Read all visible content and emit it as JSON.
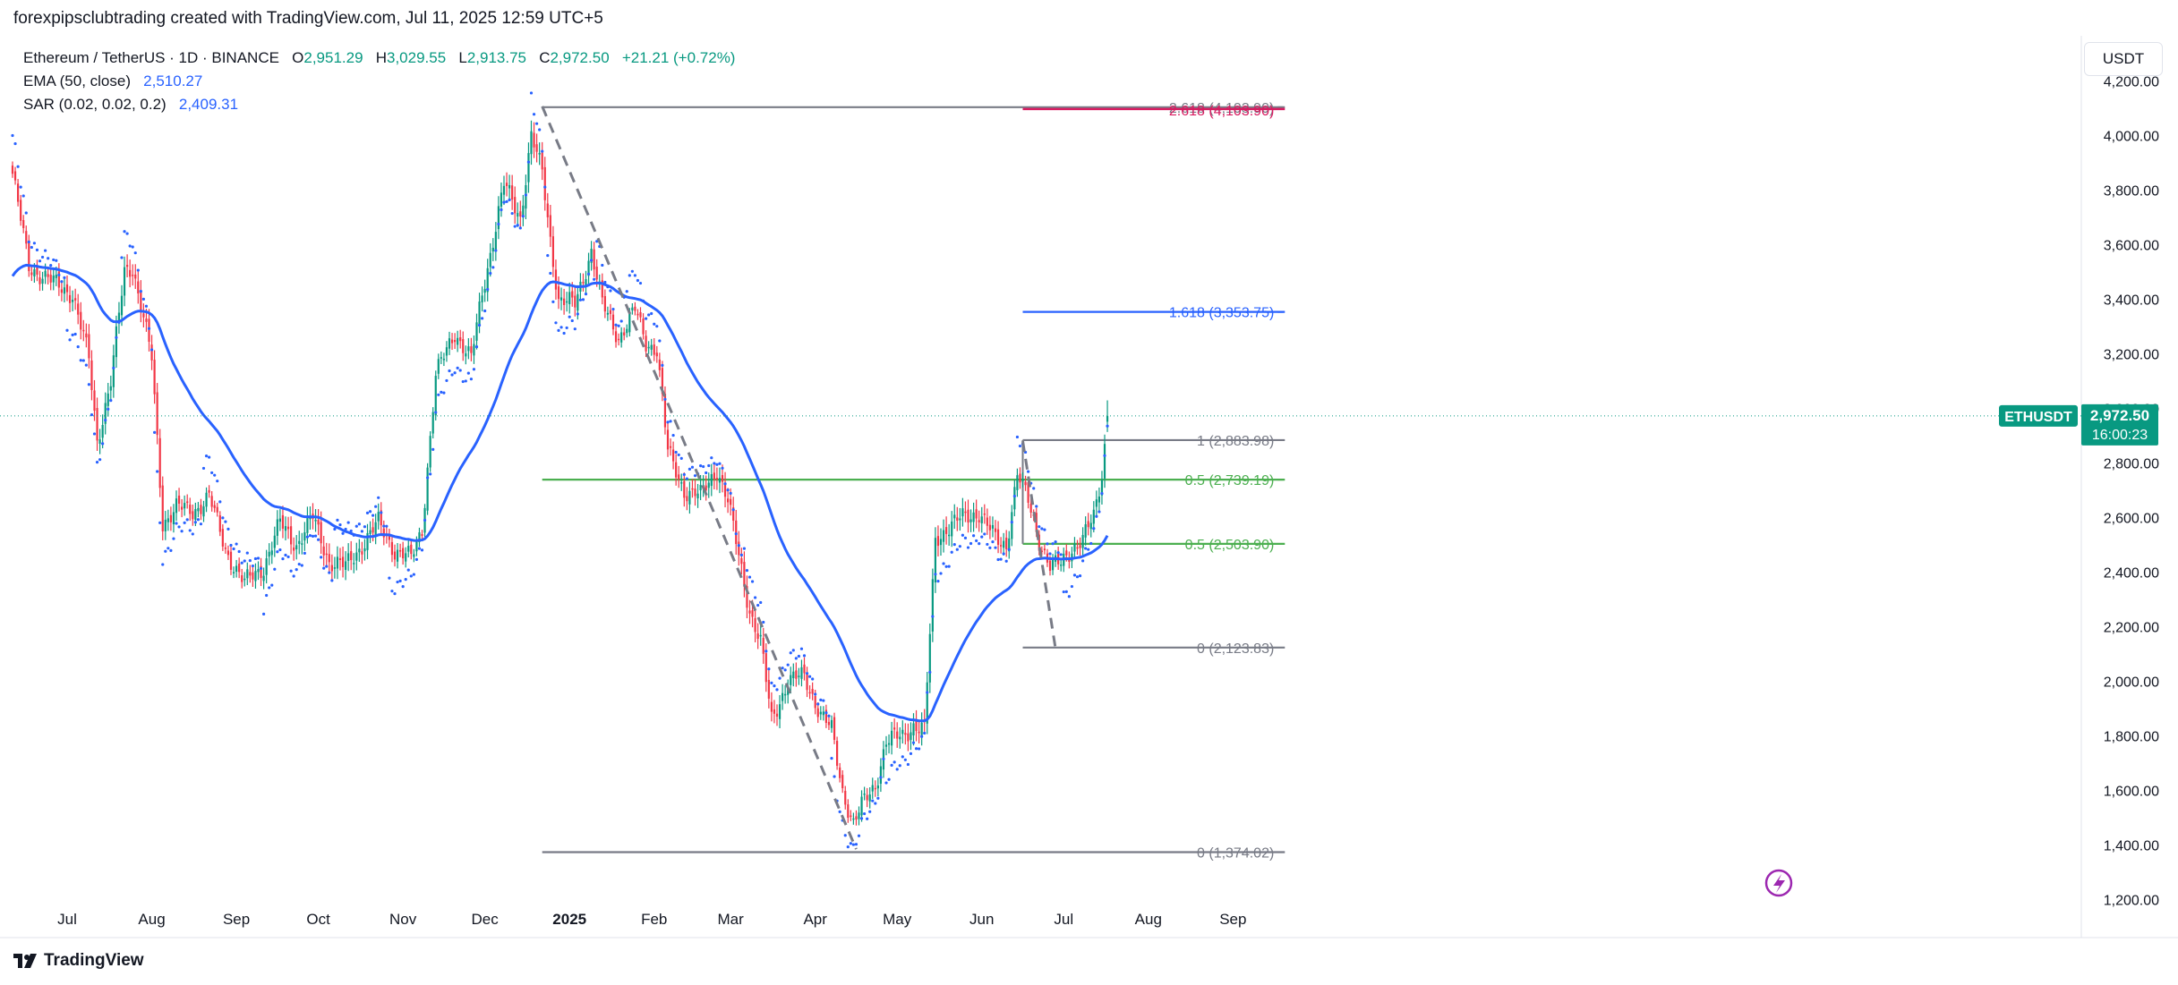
{
  "header": {
    "caption": "forexpipsclubtrading created with TradingView.com, Jul 11, 2025 12:59 UTC+5"
  },
  "legend": {
    "symbol": "Ethereum / TetherUS · 1D · BINANCE",
    "o_label": "O",
    "o_value": "2,951.29",
    "h_label": "H",
    "h_value": "3,029.55",
    "l_label": "L",
    "l_value": "2,913.75",
    "c_label": "C",
    "c_value": "2,972.50",
    "change": "+21.21 (+0.72%)",
    "ema_label": "EMA (50, close)",
    "ema_value": "2,510.27",
    "sar_label": "SAR (0.02, 0.02, 0.2)",
    "sar_value": "2,409.31"
  },
  "currency": "USDT",
  "footer": {
    "brand": "TradingView"
  },
  "colors": {
    "up": "#089981",
    "down": "#f23645",
    "ema": "#2962ff",
    "fib_green": "#4caf50",
    "fib_gray": "#787b86",
    "fib_blue": "#2962ff",
    "fib_red": "#d81b60"
  },
  "chart_data": {
    "type": "candlestick",
    "symbol": "ETHUSDT",
    "last_price": "2,972.50",
    "countdown": "16:00:23",
    "y_axis": {
      "min": 1120,
      "max": 4300,
      "ticks": [
        "4,200.00",
        "4,000.00",
        "3,800.00",
        "3,600.00",
        "3,400.00",
        "3,200.00",
        "3,000.00",
        "2,800.00",
        "2,600.00",
        "2,400.00",
        "2,200.00",
        "2,000.00",
        "1,800.00",
        "1,600.00",
        "1,400.00",
        "1,200.00"
      ],
      "tick_values": [
        4200,
        4000,
        3800,
        3600,
        3400,
        3200,
        3000,
        2800,
        2600,
        2400,
        2200,
        2000,
        1800,
        1600,
        1400,
        1200
      ]
    },
    "x_axis": {
      "labels": [
        "Jul",
        "Aug",
        "Sep",
        "Oct",
        "Nov",
        "Dec",
        "2025",
        "Feb",
        "Mar",
        "Apr",
        "May",
        "Jun",
        "Jul",
        "Aug",
        "Sep"
      ],
      "label_days": [
        20,
        51,
        82,
        112,
        143,
        173,
        204,
        235,
        263,
        294,
        324,
        355,
        385,
        416,
        447
      ],
      "total_days": 460
    },
    "fib_upper": {
      "start_day": 194,
      "end_day": 466,
      "levels": [
        {
          "label": "2.618 (4,103.90)",
          "value": 4103.9,
          "color": "#787b86",
          "start_day": 194
        },
        {
          "label": "1.618 (3,353.75)",
          "value": 3353.75,
          "color": "#2962ff",
          "start_day": 370
        },
        {
          "label": "0.5 (2,739.19)",
          "value": 2739.19,
          "color": "#4caf50",
          "start_day": 194
        },
        {
          "label": "0 (1,374.02)",
          "value": 1374.02,
          "color": "#787b86",
          "start_day": 194
        }
      ],
      "trend_from": {
        "day": 194,
        "value": 4107
      },
      "trend_to": {
        "day": 309,
        "value": 1385
      }
    },
    "fib_red_label": "2.618 (4,103.90)",
    "fib_red_value": 4103.9,
    "fib_lower": {
      "start_day": 370,
      "end_day": 466,
      "levels": [
        {
          "label": "1 (2,883.98)",
          "value": 2883.98,
          "color": "#787b86"
        },
        {
          "label": "0.5 (2,503.90)",
          "value": 2503.9,
          "color": "#4caf50"
        },
        {
          "label": "0 (2,123.83)",
          "value": 2123.83,
          "color": "#787b86"
        }
      ],
      "trend_from": {
        "day": 370,
        "value": 2880
      },
      "trend_to": {
        "day": 382,
        "value": 2120
      }
    },
    "price_anchors": [
      [
        0,
        3860
      ],
      [
        6,
        3520
      ],
      [
        15,
        3460
      ],
      [
        22,
        3420
      ],
      [
        28,
        3180
      ],
      [
        31,
        2880
      ],
      [
        36,
        3100
      ],
      [
        41,
        3500
      ],
      [
        44,
        3520
      ],
      [
        47,
        3380
      ],
      [
        51,
        3180
      ],
      [
        55,
        2580
      ],
      [
        60,
        2640
      ],
      [
        66,
        2620
      ],
      [
        72,
        2680
      ],
      [
        78,
        2480
      ],
      [
        85,
        2360
      ],
      [
        92,
        2420
      ],
      [
        98,
        2580
      ],
      [
        104,
        2500
      ],
      [
        110,
        2600
      ],
      [
        116,
        2440
      ],
      [
        122,
        2420
      ],
      [
        128,
        2500
      ],
      [
        134,
        2580
      ],
      [
        140,
        2480
      ],
      [
        146,
        2450
      ],
      [
        150,
        2560
      ],
      [
        155,
        3120
      ],
      [
        162,
        3280
      ],
      [
        168,
        3180
      ],
      [
        172,
        3420
      ],
      [
        176,
        3620
      ],
      [
        180,
        3820
      ],
      [
        186,
        3700
      ],
      [
        190,
        4000
      ],
      [
        194,
        3860
      ],
      [
        197,
        3620
      ],
      [
        200,
        3400
      ],
      [
        206,
        3380
      ],
      [
        212,
        3580
      ],
      [
        216,
        3380
      ],
      [
        222,
        3260
      ],
      [
        228,
        3360
      ],
      [
        232,
        3240
      ],
      [
        236,
        3220
      ],
      [
        240,
        2840
      ],
      [
        246,
        2700
      ],
      [
        252,
        2680
      ],
      [
        258,
        2780
      ],
      [
        262,
        2660
      ],
      [
        266,
        2460
      ],
      [
        270,
        2260
      ],
      [
        274,
        2140
      ],
      [
        278,
        1860
      ],
      [
        284,
        2000
      ],
      [
        290,
        2020
      ],
      [
        296,
        1880
      ],
      [
        300,
        1820
      ],
      [
        304,
        1600
      ],
      [
        308,
        1480
      ],
      [
        312,
        1560
      ],
      [
        316,
        1620
      ],
      [
        320,
        1780
      ],
      [
        326,
        1800
      ],
      [
        330,
        1840
      ],
      [
        334,
        1820
      ],
      [
        338,
        2520
      ],
      [
        342,
        2560
      ],
      [
        348,
        2600
      ],
      [
        354,
        2620
      ],
      [
        360,
        2520
      ],
      [
        364,
        2500
      ],
      [
        368,
        2760
      ],
      [
        372,
        2660
      ],
      [
        376,
        2520
      ],
      [
        380,
        2420
      ],
      [
        384,
        2430
      ],
      [
        388,
        2490
      ],
      [
        392,
        2520
      ],
      [
        396,
        2600
      ],
      [
        399,
        2760
      ],
      [
        401,
        2972
      ]
    ],
    "sar_side": [
      [
        0,
        20,
        1
      ],
      [
        20,
        40,
        -1
      ],
      [
        40,
        52,
        1
      ],
      [
        52,
        70,
        -1
      ],
      [
        70,
        92,
        1
      ],
      [
        92,
        118,
        -1
      ],
      [
        118,
        138,
        1
      ],
      [
        138,
        153,
        -1
      ],
      [
        153,
        190,
        -1
      ],
      [
        190,
        196,
        1
      ],
      [
        196,
        214,
        -1
      ],
      [
        214,
        224,
        1
      ],
      [
        224,
        268,
        1
      ],
      [
        268,
        300,
        1
      ],
      [
        300,
        320,
        -1
      ],
      [
        320,
        336,
        -1
      ],
      [
        336,
        368,
        -1
      ],
      [
        368,
        385,
        1
      ],
      [
        385,
        402,
        -1
      ]
    ]
  }
}
